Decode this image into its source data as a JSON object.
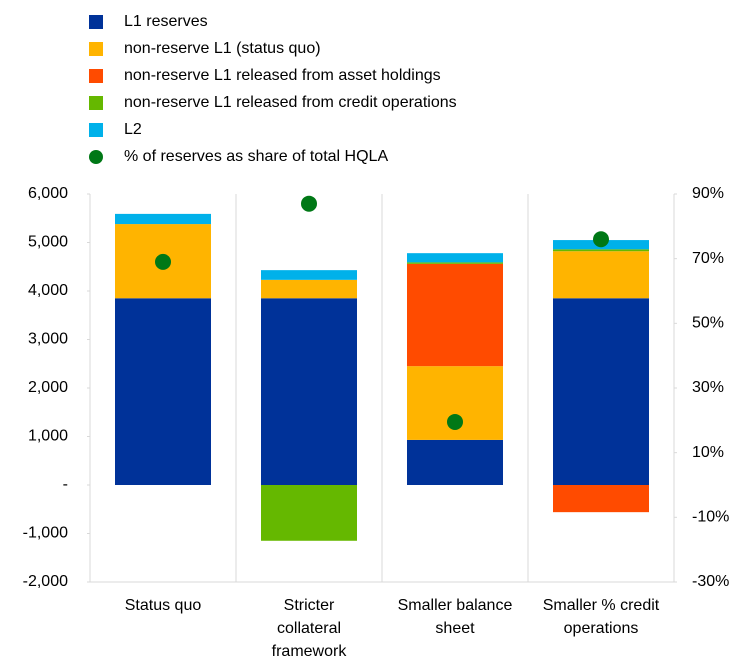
{
  "chart_data": {
    "type": "bar",
    "stacked": true,
    "categories": [
      "Status quo",
      "Stricter\ncollateral\nframework",
      "Smaller balance\nsheet",
      "Smaller % credit\noperations"
    ],
    "series": [
      {
        "name": "L1 reserves",
        "color": "#003299",
        "values": [
          3850,
          3850,
          930,
          3850
        ]
      },
      {
        "name": "non-reserve L1 (status quo)",
        "color": "#ffb400",
        "values": [
          1530,
          380,
          1520,
          970
        ]
      },
      {
        "name": "non-reserve L1 released from asset holdings",
        "color": "#ff4b00",
        "values": [
          0,
          0,
          2110,
          -560
        ]
      },
      {
        "name": "non-reserve L1 released from credit operations",
        "color": "#65b800",
        "values": [
          0,
          -1150,
          30,
          40
        ]
      },
      {
        "name": "L2",
        "color": "#00b1ea",
        "values": [
          210,
          200,
          190,
          190
        ]
      },
      {
        "name": "% of reserves as share of total HQLA",
        "color": "#007816",
        "axis": "y2",
        "marker": "circle",
        "values": [
          69,
          87,
          19.5,
          76
        ]
      }
    ],
    "ylim": [
      -2000,
      6000
    ],
    "yticks": [
      {
        "value": -2000,
        "label": "-2,000"
      },
      {
        "value": -1000,
        "label": "-1,000"
      },
      {
        "value": 0,
        "label": "-"
      },
      {
        "value": 1000,
        "label": "1,000"
      },
      {
        "value": 2000,
        "label": "2,000"
      },
      {
        "value": 3000,
        "label": "3,000"
      },
      {
        "value": 4000,
        "label": "4,000"
      },
      {
        "value": 5000,
        "label": "5,000"
      },
      {
        "value": 6000,
        "label": "6,000"
      }
    ],
    "y2lim": [
      -30,
      90
    ],
    "y2ticks": [
      {
        "value": -30,
        "label": "-30%"
      },
      {
        "value": -10,
        "label": "-10%"
      },
      {
        "value": 10,
        "label": "10%"
      },
      {
        "value": 30,
        "label": "30%"
      },
      {
        "value": 50,
        "label": "50%"
      },
      {
        "value": 70,
        "label": "70%"
      },
      {
        "value": 90,
        "label": "90%"
      }
    ],
    "legend": "top"
  }
}
